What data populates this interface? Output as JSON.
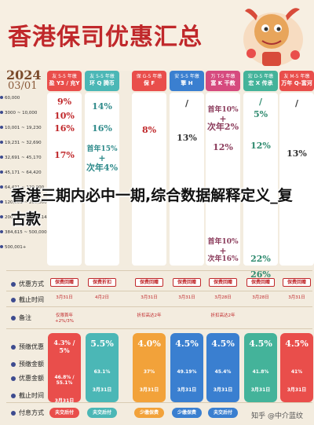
{
  "header": {
    "title": "香港保司优惠汇总"
  },
  "date": {
    "year": "2024",
    "day": "03/01"
  },
  "columns": [
    {
      "line1": "友 5-5 年缴",
      "line2": "盈 Y3 / 充Y",
      "color": "#e94e4b"
    },
    {
      "line1": "友 5-5 年缴",
      "line2": "环 Q 腾币",
      "color": "#4bb7b6"
    },
    {
      "line1": "保 G-5 年缴",
      "line2": "保 F",
      "color": "#e94e4b"
    },
    {
      "line1": "安 5-5 年缴",
      "line2": "擎 H",
      "color": "#3a7fd0"
    },
    {
      "line1": "万 T-5 年缴",
      "line2": "富 K 干教",
      "color": "#d64a7e"
    },
    {
      "line1": "宏 D-5 年缴",
      "line2": "宏 X 传承",
      "color": "#44b39a"
    },
    {
      "line1": "友 M-5 年缴",
      "line2": "万年 Q-富河",
      "color": "#e94e4b"
    }
  ],
  "axis_rows": [
    "60,000",
    "3000  ~  10,000",
    "10,001 ~ 19,230",
    "19,231 ~ 32,690",
    "32,691 ~ 45,170",
    "45,171 ~ 64,420",
    "64,421 ~ 120,000",
    "120,001 ~ 200,000",
    "200,001 ~ 384,614",
    "384,615 ~ 500,000",
    "500,001+"
  ],
  "rates": {
    "col0": [
      "9%",
      "10%",
      "16%",
      "17%"
    ],
    "col1": [
      "14%",
      "16%",
      "首年15%",
      "+",
      "次年4%"
    ],
    "col2": [
      "8%"
    ],
    "col3": [
      "/",
      "13%"
    ],
    "col4": [
      "首年10%",
      "+",
      "次年2%",
      "12%",
      "首年10%",
      "+",
      "次年16%"
    ],
    "col5": [
      "/",
      "5%",
      "12%",
      "22%",
      "26%"
    ],
    "col6": [
      "/",
      "13%"
    ]
  },
  "overlay": "香港三期内必中一期,综合数据解释定义_复古款",
  "rows": {
    "type_label": "优惠方式",
    "deadline_label": "截止时间",
    "note_label": "备注",
    "discount_label": "预缴优惠",
    "prepay_amount_label": "预缴金额",
    "total_label": "优惠金额",
    "deadline2_label": "截止时间",
    "pay_label": "付息方式"
  },
  "type_tags": [
    "保费回赠",
    "保费折扣",
    "保费回赠",
    "保费回赠",
    "保费回赠",
    "保费回赠",
    "保费回赠"
  ],
  "deadlines": [
    "3月31日",
    "4月2日",
    "3月31日",
    "3月31日",
    "3月28日",
    "3月28日",
    "3月31日"
  ],
  "notes": [
    "仅限首年 +2%/3%",
    "",
    "折扣高达2年",
    "",
    "折扣高达2年",
    "",
    ""
  ],
  "discounts": [
    "4.3% / 5%",
    "5.5%",
    "4.0%",
    "4.5%",
    "4.5%",
    "4.5%",
    "4.5%"
  ],
  "totals": [
    "46.8% / 55.1%",
    "63.1%",
    "37%",
    "49.19%",
    "45.4%",
    "41.8%",
    "41%"
  ],
  "deadlines2": [
    "3月31日",
    "3月31日",
    "3月31日",
    "3月31日",
    "3月31日",
    "3月31日",
    "3月31日"
  ],
  "pays": [
    "夫交后付",
    "夫交后付",
    "少缴保费",
    "少缴保费",
    "夫交后付",
    "",
    ""
  ],
  "watermark": "知乎 @中介蓝纹",
  "colors": {
    "red": "#e94e4b",
    "teal": "#4bb7b6",
    "blue": "#3a7fd0",
    "pink": "#d64a7e",
    "green": "#44b39a",
    "orange": "#f2a23a"
  }
}
